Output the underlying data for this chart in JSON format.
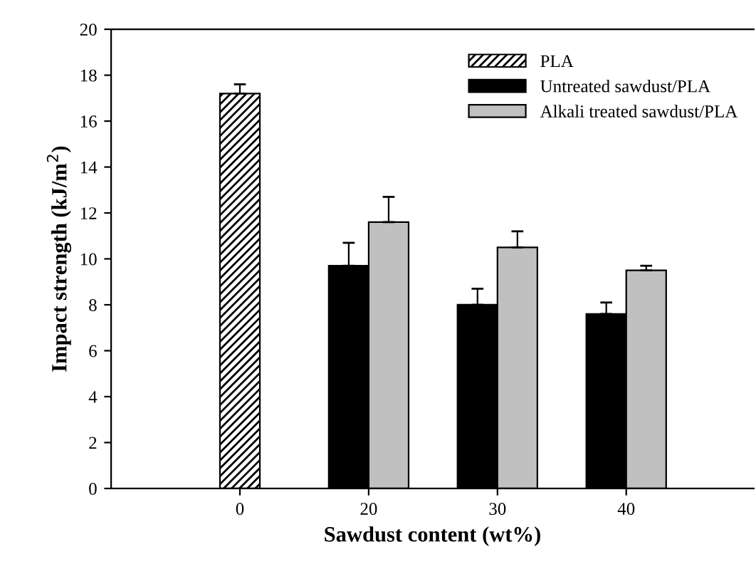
{
  "chart_data": {
    "type": "bar",
    "xlabel": "Sawdust content (wt%)",
    "ylabel": "Impact strength (kJ/m$^{2}$)",
    "categories": [
      "0",
      "20",
      "30",
      "40"
    ],
    "series": [
      {
        "name": "PLA",
        "color": "#000000",
        "values": [
          17.2,
          null,
          null,
          null
        ],
        "errors": [
          [
            17.2,
            17.6
          ],
          null,
          null,
          null
        ]
      },
      {
        "name": "Untreated sawdust/PLA",
        "color": "#000000",
        "values": [
          null,
          9.7,
          8.0,
          7.6
        ],
        "errors": [
          null,
          [
            9.7,
            10.7
          ],
          [
            8.0,
            8.7
          ],
          [
            7.6,
            8.1
          ]
        ]
      },
      {
        "name": "Alkali treated sawdust/PLA",
        "color": "#c0c0c0",
        "values": [
          null,
          11.6,
          10.5,
          9.5
        ],
        "errors": [
          null,
          [
            11.6,
            12.7
          ],
          [
            10.5,
            11.2
          ],
          [
            9.5,
            9.7
          ]
        ]
      }
    ],
    "ylim": [
      0,
      20
    ],
    "yticks": [
      0,
      2,
      4,
      6,
      8,
      10,
      12,
      14,
      16,
      18,
      20
    ],
    "grid": false,
    "legend": "top right"
  }
}
